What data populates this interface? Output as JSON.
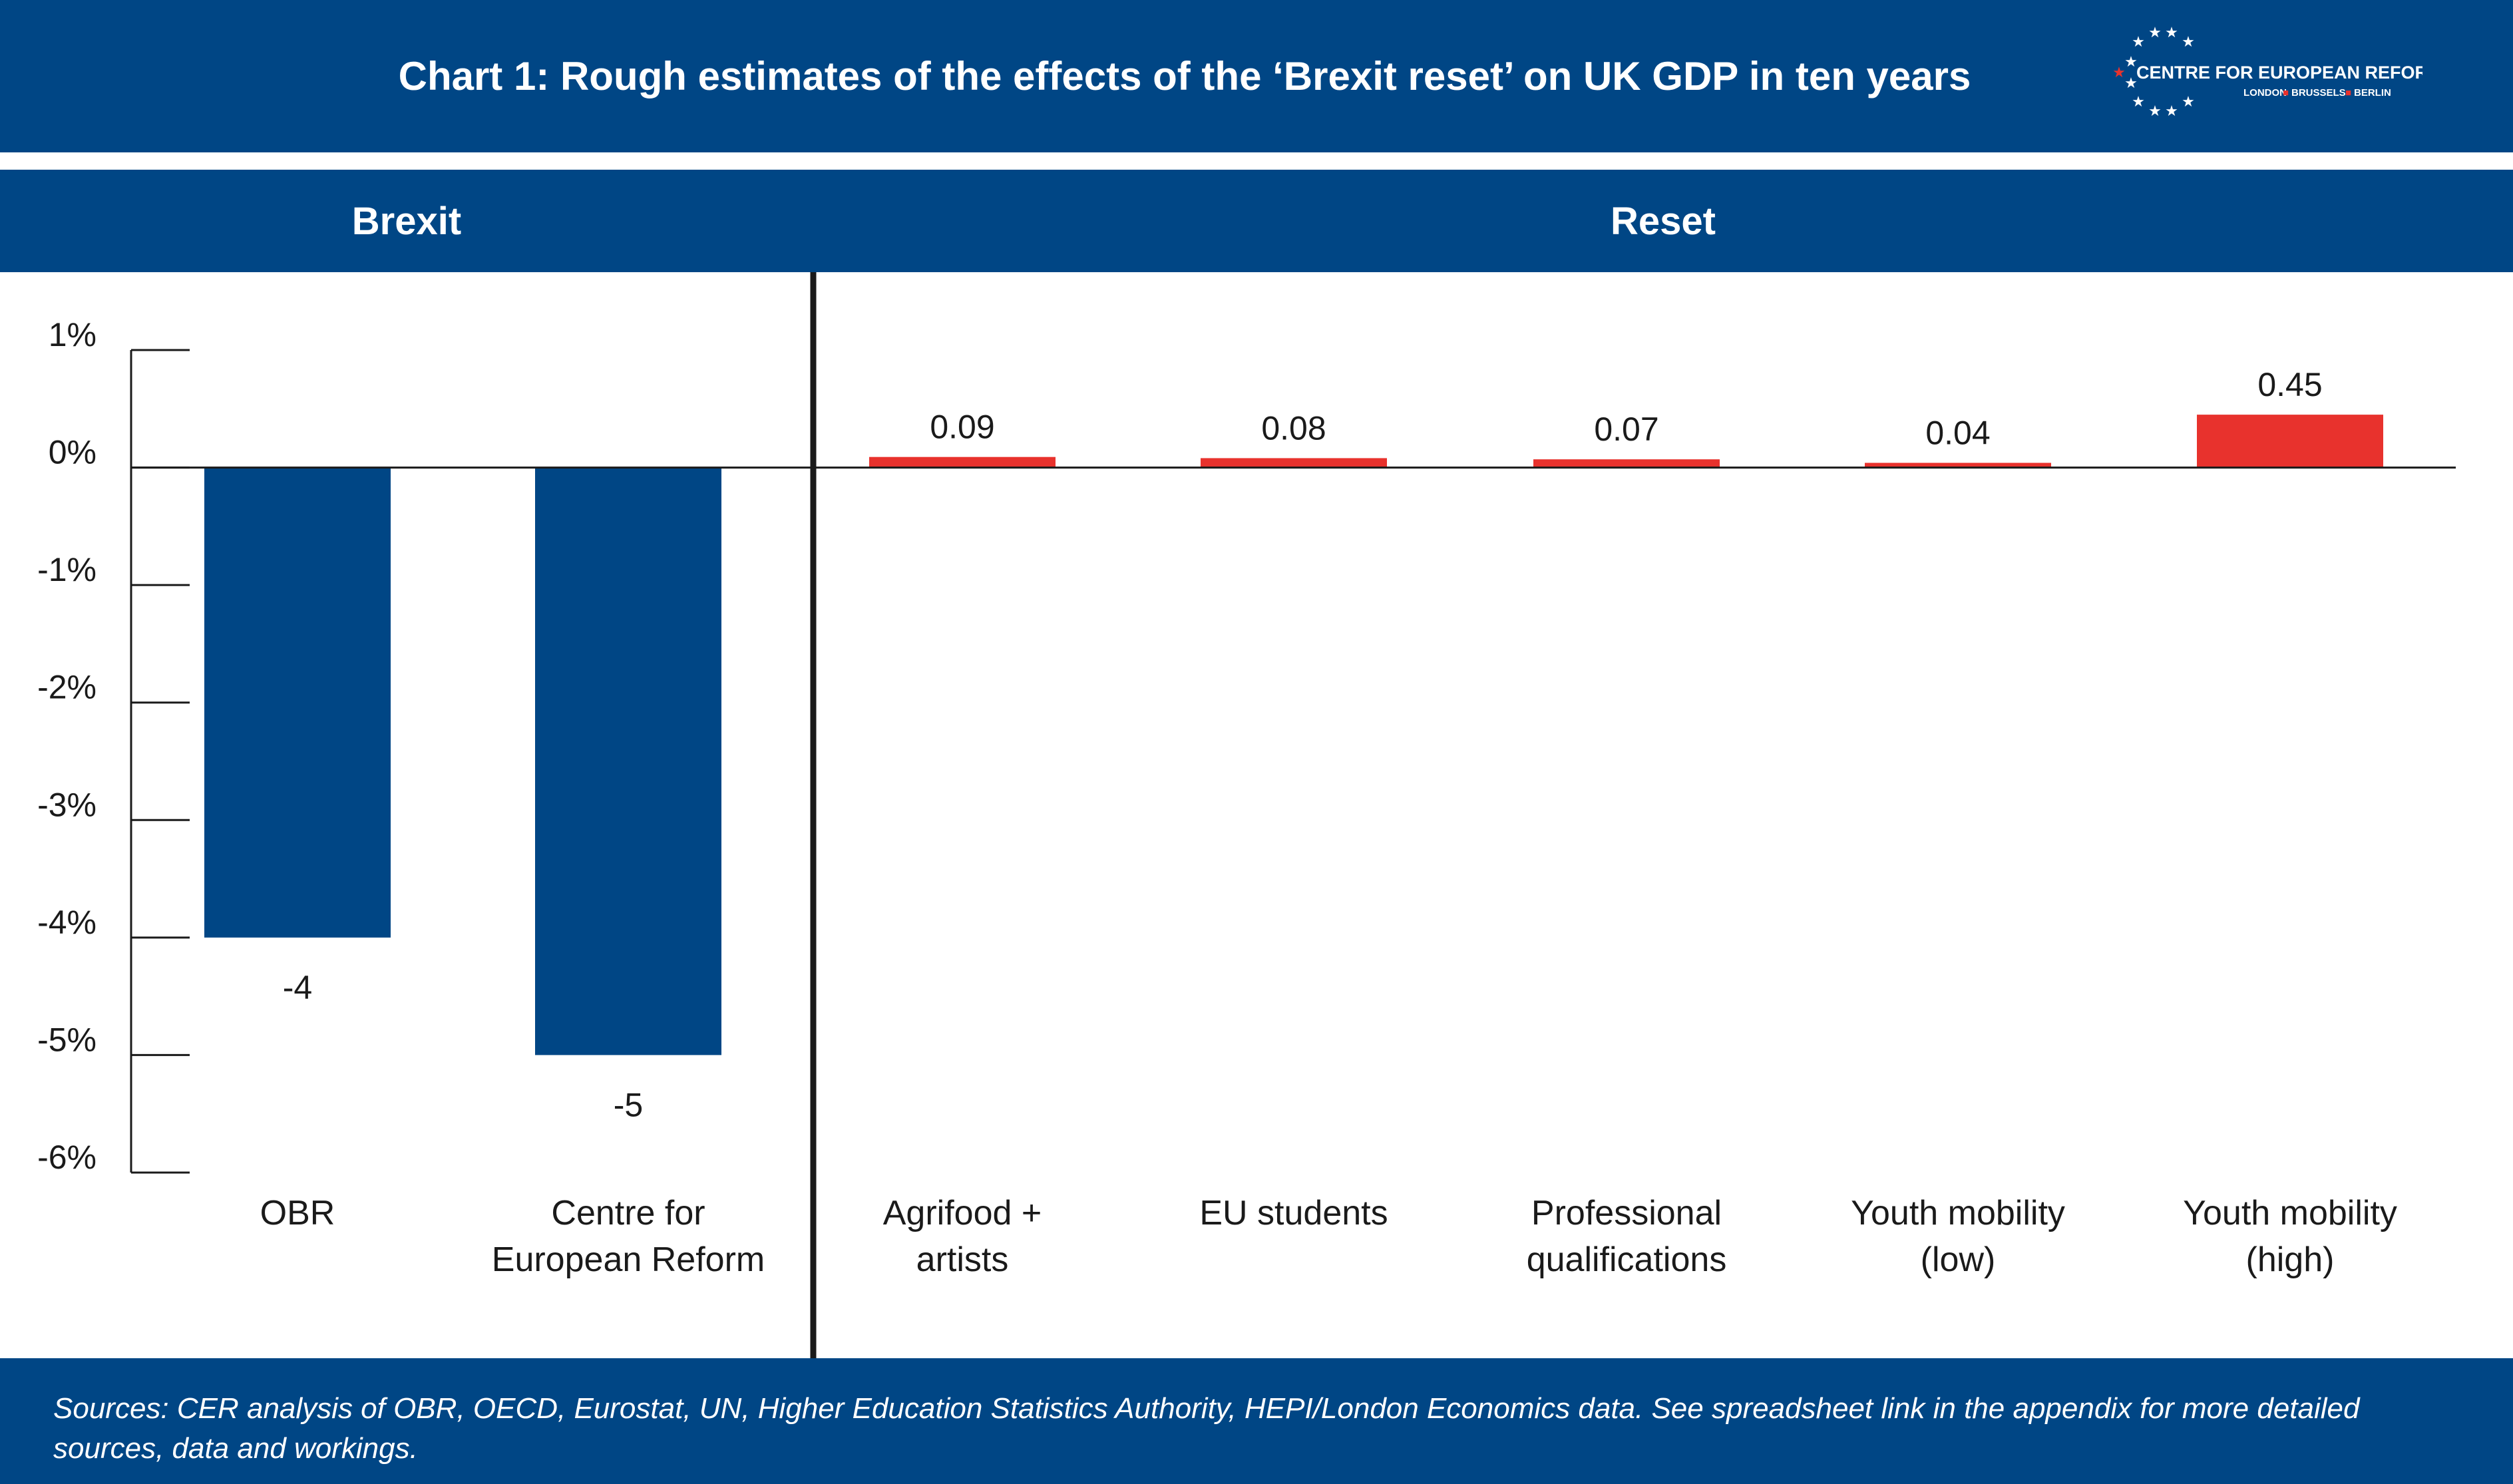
{
  "header": {
    "title": "Chart 1: Rough estimates of the effects of the ‘Brexit reset’ on UK GDP in ten years",
    "logo_text": "CENTRE FOR EUROPEAN REFORM",
    "logo_cities": [
      "LONDON",
      "BRUSSELS",
      "BERLIN"
    ]
  },
  "sections": {
    "left": "Brexit",
    "right": "Reset"
  },
  "footer": {
    "sources": "Sources:  CER analysis of OBR, OECD, Eurostat, UN, Higher Education Statistics Authority, HEPI/London Economics data. See spreadsheet link in the appendix for more detailed sources, data and workings."
  },
  "colors": {
    "brand": "#004685",
    "negative": "#004685",
    "positive": "#e8322d",
    "text": "#1a1a1a"
  },
  "chart_data": {
    "type": "bar",
    "title": "Chart 1: Rough estimates of the effects of the ‘Brexit reset’ on UK GDP in ten years",
    "xlabel": "",
    "ylabel": "",
    "ylim": [
      -6,
      1
    ],
    "y_ticks": [
      1,
      0,
      -1,
      -2,
      -3,
      -4,
      -5,
      -6
    ],
    "y_tick_labels": [
      "1%",
      "0%",
      "-1%",
      "-2%",
      "-3%",
      "-4%",
      "-5%",
      "-6%"
    ],
    "grid": false,
    "groups": [
      {
        "name": "Brexit",
        "categories": [
          [
            "OBR"
          ],
          [
            "Centre for",
            "European Reform"
          ]
        ],
        "values": [
          -4,
          -5
        ],
        "value_labels": [
          "-4",
          "-5"
        ]
      },
      {
        "name": "Reset",
        "categories": [
          [
            "Agrifood +",
            "artists"
          ],
          [
            "EU students"
          ],
          [
            "Professional",
            "qualifications"
          ],
          [
            "Youth mobility",
            "(low)"
          ],
          [
            "Youth mobility",
            "(high)"
          ]
        ],
        "values": [
          0.09,
          0.08,
          0.07,
          0.04,
          0.45
        ],
        "value_labels": [
          "0.09",
          "0.08",
          "0.07",
          "0.04",
          "0.45"
        ]
      }
    ]
  }
}
